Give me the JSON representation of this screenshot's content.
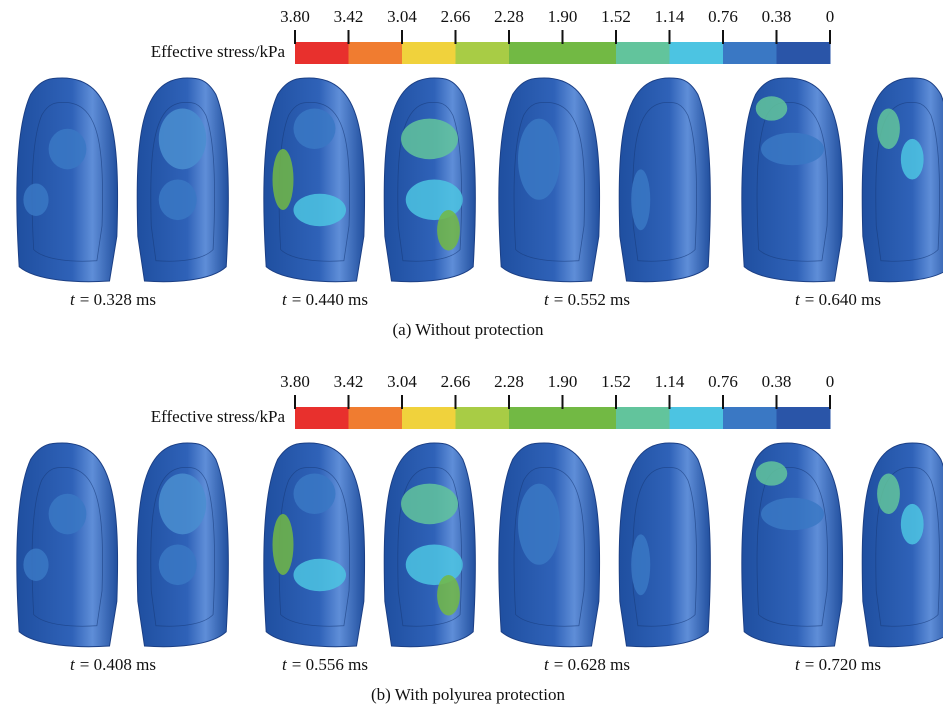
{
  "panels": [
    {
      "caption": "(a) Without protection",
      "colorbar": {
        "label": "Effective stress/kPa",
        "ticks": [
          "3.80",
          "3.42",
          "3.04",
          "2.66",
          "2.28",
          "1.90",
          "1.52",
          "1.14",
          "0.76",
          "0.38",
          "0"
        ],
        "colors": [
          "#e8302d",
          "#f07c30",
          "#f0d23c",
          "#a8cc45",
          "#72b944",
          "#72b944",
          "#62c49c",
          "#4cc4e2",
          "#3a78c4",
          "#2a55a8"
        ]
      },
      "frames": [
        {
          "variable": "t",
          "text": "= 0.328 ms"
        },
        {
          "variable": "t",
          "text": "= 0.440 ms"
        },
        {
          "variable": "t",
          "text": "= 0.552 ms"
        },
        {
          "variable": "t",
          "text": "= 0.640 ms"
        }
      ]
    },
    {
      "caption": "(b) With polyurea protection",
      "colorbar": {
        "label": "Effective stress/kPa",
        "ticks": [
          "3.80",
          "3.42",
          "3.04",
          "2.66",
          "2.28",
          "1.90",
          "1.52",
          "1.14",
          "0.76",
          "0.38",
          "0"
        ],
        "colors": [
          "#e8302d",
          "#f07c30",
          "#f0d23c",
          "#a8cc45",
          "#72b944",
          "#72b944",
          "#62c49c",
          "#4cc4e2",
          "#3a78c4",
          "#2a55a8"
        ]
      },
      "frames": [
        {
          "variable": "t",
          "text": "= 0.408 ms"
        },
        {
          "variable": "t",
          "text": "= 0.556 ms"
        },
        {
          "variable": "t",
          "text": "= 0.628 ms"
        },
        {
          "variable": "t",
          "text": "= 0.720 ms"
        }
      ]
    }
  ]
}
